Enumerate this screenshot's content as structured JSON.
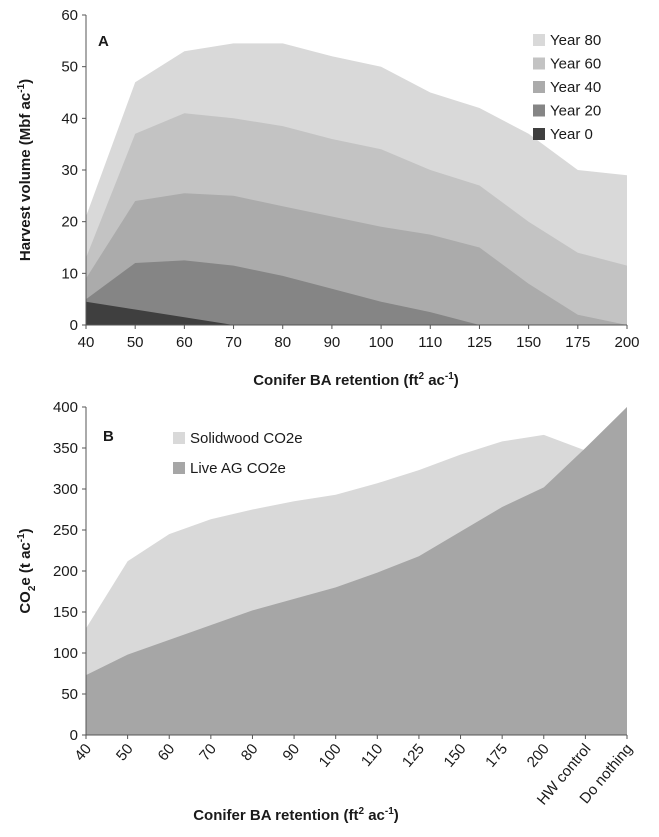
{
  "chart_data": [
    {
      "type": "area",
      "panel_label": "A",
      "ylabel": "Harvest volume (Mbf ac",
      "ylabel_sup": "-1",
      "ylabel_end": ")",
      "xlabel": "Conifer BA retention (ft",
      "xlabel_sup": "2",
      "xlabel_mid": " ac",
      "xlabel_sup2": "-1",
      "xlabel_end": ")",
      "categories": [
        "40",
        "50",
        "60",
        "70",
        "80",
        "90",
        "100",
        "110",
        "125",
        "150",
        "175",
        "200"
      ],
      "yticks": [
        "0",
        "10",
        "20",
        "30",
        "40",
        "50",
        "60"
      ],
      "ylim": [
        0,
        60
      ],
      "legend_position": "top-right",
      "stacked_cumulative": true,
      "series": [
        {
          "name": "Year 80",
          "color": "#d9d9d9",
          "values": [
            21,
            47,
            53,
            54.5,
            54.5,
            52,
            50,
            45,
            42,
            37,
            30,
            29
          ]
        },
        {
          "name": "Year 60",
          "color": "#c3c3c3",
          "values": [
            13,
            37,
            41,
            40,
            38.5,
            36,
            34,
            30,
            27,
            20,
            14,
            11.5
          ]
        },
        {
          "name": "Year 40",
          "color": "#ababab",
          "values": [
            9,
            24,
            25.5,
            25,
            23,
            21,
            19,
            17.5,
            15,
            8,
            2,
            0
          ]
        },
        {
          "name": "Year 20",
          "color": "#858585",
          "values": [
            5,
            12,
            12.5,
            11.5,
            9.5,
            7,
            4.5,
            2.5,
            0,
            0,
            0,
            0
          ]
        },
        {
          "name": "Year 0",
          "color": "#3f3f3f",
          "values": [
            4.5,
            3,
            1.5,
            0,
            0,
            0,
            0,
            0,
            0,
            0,
            0,
            0
          ]
        }
      ]
    },
    {
      "type": "area",
      "panel_label": "B",
      "ylabel": "CO",
      "ylabel_sub": "2",
      "ylabel_mid": "e (t ac",
      "ylabel_sup": "-1",
      "ylabel_end": ")",
      "xlabel": "Conifer BA retention (ft",
      "xlabel_sup": "2",
      "xlabel_mid": " ac",
      "xlabel_sup2": "-1",
      "xlabel_end": ")",
      "categories": [
        "40",
        "50",
        "60",
        "70",
        "80",
        "90",
        "100",
        "110",
        "125",
        "150",
        "175",
        "200",
        "HW control",
        "Do nothing"
      ],
      "yticks": [
        "0",
        "50",
        "100",
        "150",
        "200",
        "250",
        "300",
        "350",
        "400"
      ],
      "ylim": [
        0,
        400
      ],
      "legend_position": "top-left",
      "series": [
        {
          "name": "Solidwood CO2e",
          "color": "#d9d9d9",
          "values": [
            130,
            212,
            245,
            263,
            275,
            285,
            293,
            307,
            323,
            342,
            358,
            366,
            347,
            400
          ]
        },
        {
          "name": "Live AG CO2e",
          "color": "#a6a6a6",
          "values": [
            73,
            98,
            116,
            134,
            152,
            166,
            180,
            198,
            218,
            248,
            278,
            302,
            350,
            400
          ]
        }
      ]
    }
  ]
}
